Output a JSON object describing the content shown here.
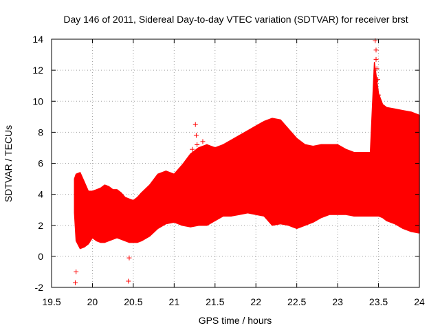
{
  "chart_data": {
    "type": "area",
    "title": "Day 146 of 2011, Sidereal Day-to-day VTEC variation (SDTVAR) for receiver brst",
    "xlabel": "GPS time / hours",
    "ylabel": "SDTVAR / TECUs",
    "xlim": [
      19.5,
      24
    ],
    "ylim": [
      -2,
      14
    ],
    "xticks": [
      "19.5",
      "20",
      "20.5",
      "21",
      "21.5",
      "22",
      "22.5",
      "23",
      "23.5",
      "24"
    ],
    "yticks": [
      "-2",
      "0",
      "2",
      "4",
      "6",
      "8",
      "10",
      "12",
      "14"
    ],
    "grid": true,
    "series": [
      {
        "name": "SDTVAR",
        "color": "#ff0000",
        "marker": "+",
        "envelope_x": [
          19.78,
          19.8,
          19.85,
          19.9,
          19.95,
          20.0,
          20.05,
          20.1,
          20.15,
          20.2,
          20.25,
          20.3,
          20.35,
          20.4,
          20.45,
          20.5,
          20.55,
          20.6,
          20.7,
          20.8,
          20.9,
          21.0,
          21.1,
          21.2,
          21.3,
          21.4,
          21.5,
          21.6,
          21.7,
          21.8,
          21.9,
          22.0,
          22.1,
          22.2,
          22.3,
          22.4,
          22.5,
          22.6,
          22.7,
          22.8,
          22.9,
          23.0,
          23.1,
          23.2,
          23.3,
          23.4,
          23.45,
          23.5,
          23.55,
          23.6,
          23.7,
          23.8,
          23.9,
          24.0
        ],
        "upper": [
          5.0,
          5.3,
          5.4,
          4.8,
          4.2,
          4.2,
          4.3,
          4.4,
          4.6,
          4.5,
          4.3,
          4.3,
          4.1,
          3.8,
          3.7,
          3.6,
          3.8,
          4.1,
          4.6,
          5.3,
          5.5,
          5.3,
          5.9,
          6.6,
          7.0,
          7.2,
          7.0,
          7.2,
          7.5,
          7.8,
          8.1,
          8.4,
          8.7,
          8.9,
          8.8,
          8.2,
          7.6,
          7.2,
          7.1,
          7.2,
          7.2,
          7.2,
          6.9,
          6.7,
          6.7,
          6.7,
          12.5,
          10.5,
          9.8,
          9.6,
          9.5,
          9.4,
          9.3,
          9.1
        ],
        "lower": [
          2.8,
          1.0,
          0.5,
          0.6,
          0.8,
          1.2,
          1.0,
          0.9,
          0.9,
          1.0,
          1.1,
          1.2,
          1.1,
          1.0,
          0.9,
          0.9,
          0.9,
          1.0,
          1.3,
          1.8,
          2.1,
          2.2,
          2.0,
          1.9,
          2.0,
          2.0,
          2.3,
          2.6,
          2.6,
          2.7,
          2.8,
          2.7,
          2.6,
          2.0,
          2.1,
          2.0,
          1.8,
          2.0,
          2.2,
          2.5,
          2.7,
          2.7,
          2.7,
          2.6,
          2.6,
          2.6,
          2.6,
          2.6,
          2.5,
          2.3,
          2.1,
          1.8,
          1.6,
          1.5
        ],
        "outliers": [
          {
            "x": 19.79,
            "y": -1.7
          },
          {
            "x": 19.8,
            "y": -1.0
          },
          {
            "x": 20.44,
            "y": -1.6
          },
          {
            "x": 20.45,
            "y": -0.1
          },
          {
            "x": 21.22,
            "y": 6.9
          },
          {
            "x": 21.26,
            "y": 8.5
          },
          {
            "x": 21.27,
            "y": 7.8
          },
          {
            "x": 21.28,
            "y": 7.2
          },
          {
            "x": 21.35,
            "y": 7.4
          },
          {
            "x": 23.46,
            "y": 13.9
          },
          {
            "x": 23.47,
            "y": 13.3
          },
          {
            "x": 23.47,
            "y": 12.7
          },
          {
            "x": 23.48,
            "y": 12.1
          },
          {
            "x": 23.49,
            "y": 11.4
          },
          {
            "x": 23.5,
            "y": 10.4
          },
          {
            "x": 23.51,
            "y": 9.5
          },
          {
            "x": 23.52,
            "y": 8.7
          },
          {
            "x": 23.54,
            "y": 8.1
          }
        ]
      }
    ]
  }
}
